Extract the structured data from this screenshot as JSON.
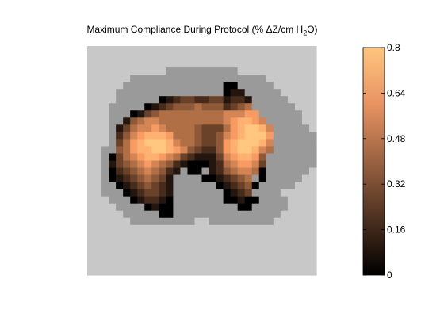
{
  "chart_data": {
    "type": "heatmap",
    "title": {
      "main": "Maximum Compliance During Protocol (% ΔZ/cm H",
      "subscript": "2",
      "suffix": "O)"
    },
    "colorbar": {
      "ticks": [
        "0.8",
        "0.64",
        "0.48",
        "0.32",
        "0.16",
        "0"
      ],
      "tick_values": [
        0.8,
        0.64,
        0.48,
        0.32,
        0.16,
        0
      ],
      "range": [
        0,
        0.8
      ],
      "colormap": "copper"
    },
    "grid": {
      "cols": 32,
      "rows": 32,
      "encoding": "rows of characters; '.'=background (light gray), 'o'=outside thorax (dark gray), digits 0-9=compliance level k, value = k/9 * 0.8",
      "rows_data": [
        "................................",
        "................................",
        "................................",
        "...........oooooooooo...........",
        "......ooooooooooooooooooo.......",
        ".....oooooooooooooo00ooooo......",
        "....ooooooooooooooo011ooooo.....",
        "....oooooo0123322331221ooooo....",
        "...ooooo012344454442345oooooo...",
        "...ooo013455555555566677oooooo..",
        "...oo14566555555555678876ooooo..",
        "...o1356676555543335789986ooooo.",
        "...o2467888755543346789997oooooo",
        "...o3578999865543347899986oooooo",
        "..oo4578899876432247899865oooooo",
        "..o0356788765321113678874ooooooo",
        "..o1345676542100012567763ooooooo",
        "..o0234565421o00o12456650oooooo.",
        "..o012345431oooo0012345o0ooooo..",
        "..oo01234321oooooo012340ooooo...",
        "..ooo0123321ooooooo0123oooo.....",
        "...ooo012210ooooooo00100oooo....",
        "....oooo0100ooooooooo00ooooo....",
        ".....ooooo00ooooooooooooooo.....",
        "......ooooooooo..ooooooooo......",
        "................................",
        "................................",
        "................................",
        "................................",
        "................................",
        "................................",
        "................................"
      ]
    }
  },
  "colors": {
    "background_region": "#c8c8c8",
    "outside_region": "#9a9a9a",
    "page_background": "#ffffff",
    "axes_frame": "#000000"
  }
}
